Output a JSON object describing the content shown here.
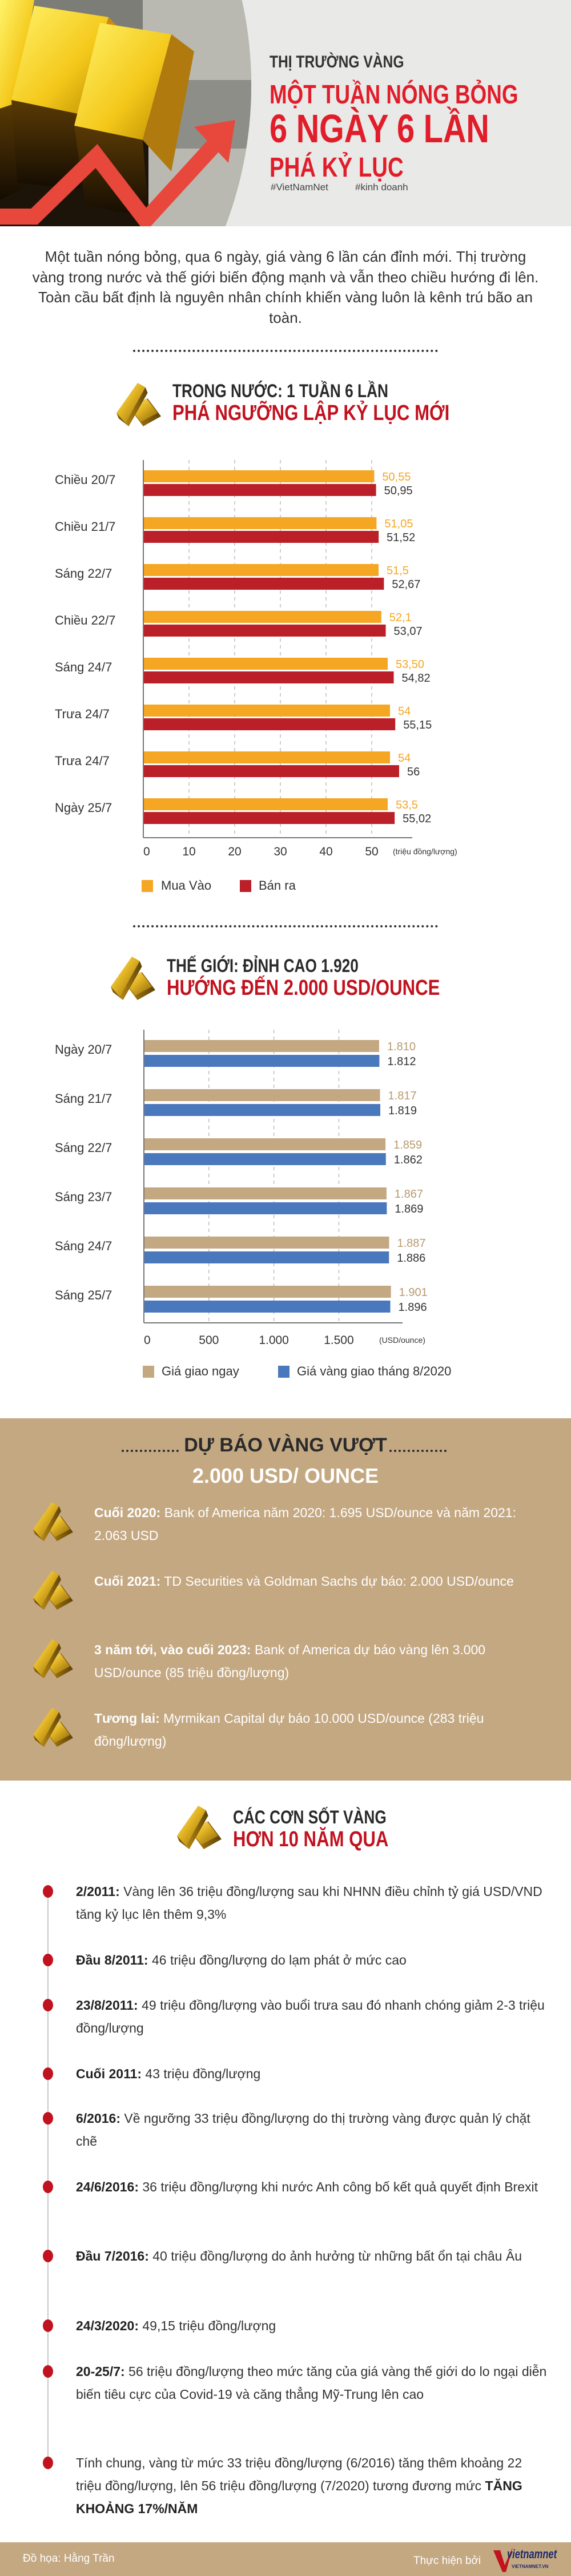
{
  "hero": {
    "kicker": "THỊ TRƯỜNG VÀNG",
    "title_line1": "MỘT TUẦN NÓNG BỎNG",
    "title_line2": "6 NGÀY 6 LẦN",
    "title_line3": "PHÁ KỶ LỤC",
    "tags": [
      "#VietNamNet",
      "#kinh doanh"
    ]
  },
  "intro": "Một tuần nóng bỏng, qua 6 ngày, giá vàng 6 lần cán đỉnh mới. Thị trường vàng trong nước và thế giới biến động mạnh và vẫn theo chiều hướng đi lên. Toàn cầu bất định là nguyên nhân chính khiến vàng luôn là kênh trú bão an toàn.",
  "colors": {
    "red": "#c1121f",
    "orange": "#f5a623",
    "crimson": "#bb2029",
    "tan": "#c4a882",
    "blue": "#4a78bc"
  },
  "chart_data": [
    {
      "type": "bar",
      "orientation": "horizontal",
      "title": "TRONG NƯỚC: 1 TUẦN 6 LẦN",
      "subtitle": "PHÁ NGƯỠNG LẬP KỶ LỤC MỚI",
      "categories": [
        "Chiều 20/7",
        "Chiều 21/7",
        "Sáng 22/7",
        "Chiều 22/7",
        "Sáng 24/7",
        "Trưa 24/7",
        "Trưa 24/7",
        "Ngày 25/7"
      ],
      "series": [
        {
          "name": "Mua Vào",
          "color": "#f5a623",
          "label_color": "#f5a623",
          "values": [
            50.55,
            51.05,
            51.5,
            52.1,
            53.5,
            54,
            54,
            53.5
          ],
          "labels": [
            "50,55",
            "51,05",
            "51,5",
            "52,1",
            "53,50",
            "54",
            "54",
            "53,5"
          ]
        },
        {
          "name": "Bán ra",
          "color": "#bb2029",
          "label_color": "#333333",
          "values": [
            50.95,
            51.52,
            52.67,
            53.07,
            54.82,
            55.15,
            56,
            55.02
          ],
          "labels": [
            "50,95",
            "51,52",
            "52,67",
            "53,07",
            "54,82",
            "55,15",
            "56",
            "55,02"
          ]
        }
      ],
      "xticks": [
        0,
        10,
        20,
        30,
        40,
        50
      ],
      "xtick_labels": [
        "0",
        "10",
        "20",
        "30",
        "40",
        "50"
      ],
      "xlim": [
        0,
        60
      ],
      "xlabel": "(triệu đồng/lượng)",
      "grid": true,
      "legend": "bottom-left"
    },
    {
      "type": "bar",
      "orientation": "horizontal",
      "title": "THẾ GIỚI: ĐỈNH CAO 1.920",
      "subtitle": "HƯỚNG ĐẾN 2.000 USD/OUNCE",
      "categories": [
        "Ngày 20/7",
        "Sáng 21/7",
        "Sáng 22/7",
        "Sáng 23/7",
        "Sáng 24/7",
        "Sáng 25/7"
      ],
      "series": [
        {
          "name": "Giá giao ngay",
          "color": "#c4a882",
          "label_color": "#b89a6e",
          "values": [
            1810,
            1817,
            1859,
            1867,
            1887,
            1901
          ],
          "labels": [
            "1.810",
            "1.817",
            "1.859",
            "1.867",
            "1.887",
            "1.901"
          ]
        },
        {
          "name": "Giá vàng giao tháng 8/2020",
          "color": "#4a78bc",
          "label_color": "#333333",
          "values": [
            1812,
            1819,
            1862,
            1869,
            1886,
            1896
          ],
          "labels": [
            "1.812",
            "1.819",
            "1.862",
            "1.869",
            "1.886",
            "1.896"
          ]
        }
      ],
      "xticks": [
        0,
        500,
        1000,
        1500
      ],
      "xtick_labels": [
        "0",
        "500",
        "1.000",
        "1.500"
      ],
      "xlim": [
        0,
        2000
      ],
      "xlabel": "(USD/ounce)",
      "grid": true,
      "legend": "bottom-left"
    }
  ],
  "forecast": {
    "title_line1": "DỰ BÁO VÀNG VƯỢT",
    "title_line2": "2.000 USD/ OUNCE",
    "items": [
      {
        "label": "Cuối 2020:",
        "text": " Bank of America năm 2020: 1.695 USD/ounce và năm 2021: 2.063 USD"
      },
      {
        "label": "Cuối 2021:",
        "text": " TD Securities và Goldman Sachs dự báo: 2.000 USD/ounce"
      },
      {
        "label": "3 năm tới, vào cuối 2023:",
        "text": " Bank of America dự báo vàng lên 3.000 USD/ounce (85 triệu đồng/lượng)"
      },
      {
        "label": "Tương lai:",
        "text": " Myrmikan Capital dự báo 10.000 USD/ounce (283 triệu đồng/lượng)"
      }
    ]
  },
  "history": {
    "title_line1": "CÁC CƠN SỐT VÀNG",
    "title_line2": "HƠN 10 NĂM QUA",
    "items": [
      {
        "label": "2/2011:",
        "text": " Vàng lên 36 triệu đồng/lượng sau khi NHNN điều chỉnh tỷ giá USD/VND tăng kỷ lục lên thêm 9,3%"
      },
      {
        "label": "Đầu 8/2011:",
        "text": " 46 triệu đồng/lượng do lạm phát ở mức cao"
      },
      {
        "label": "23/8/2011:",
        "text": " 49 triệu đồng/lượng vào buổi trưa sau đó nhanh chóng giảm 2-3 triệu đồng/lượng"
      },
      {
        "label": "Cuối 2011:",
        "text": " 43 triệu đồng/lượng"
      },
      {
        "label": "6/2016:",
        "text": " Về ngưỡng 33 triệu đồng/lượng do thị trường vàng được quản lý chặt chẽ"
      },
      {
        "label": "24/6/2016:",
        "text": " 36 triệu đồng/lượng khi nước Anh công bố kết quả quyết định Brexit"
      },
      {
        "label": "Đầu 7/2016:",
        "text": " 40 triệu đồng/lượng do ảnh hưởng từ những bất ổn tại châu Âu"
      },
      {
        "label": "24/3/2020:",
        "text": " 49,15 triệu đồng/lượng"
      },
      {
        "label": "20-25/7:",
        "text": " 56 triệu đồng/lượng theo mức tăng của giá vàng thế giới do lo ngại diễn biến tiêu cực của Covid-19 và căng thẳng Mỹ-Trung lên cao"
      }
    ],
    "summary_text": "Tính chung, vàng từ mức 33 triệu đồng/lượng (6/2016) tăng thêm khoảng 22 triệu đồng/lượng, lên 56 triệu đồng/lượng (7/2020) tương đương mức ",
    "summary_bold": "TĂNG KHOẢNG 17%/NĂM"
  },
  "footer": {
    "credit": "Đồ họa: Hằng Trần",
    "produced_by": "Thực hiện bởi",
    "logo_text": "vietnamnet",
    "logo_sub": "VIETNAMNET.VN"
  }
}
